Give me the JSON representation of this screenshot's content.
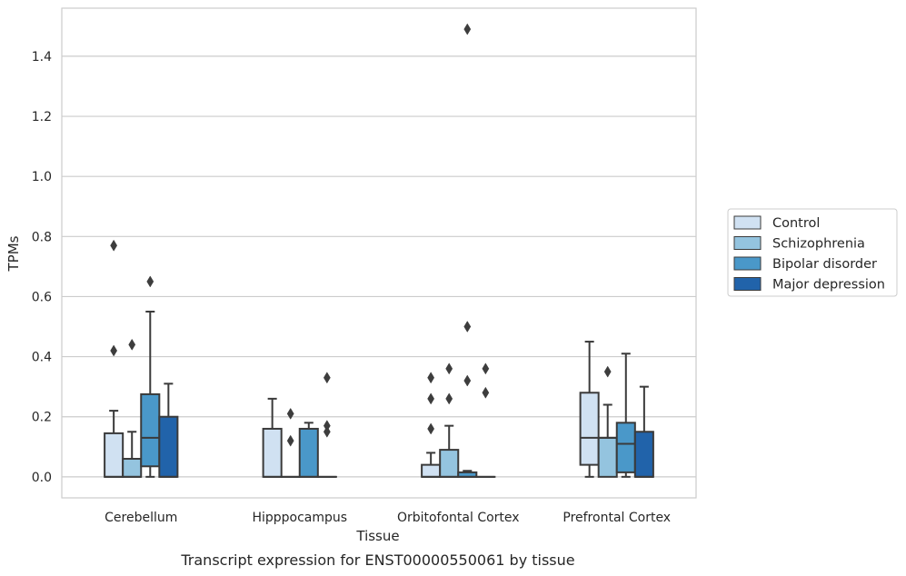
{
  "chart_data": {
    "type": "box",
    "xlabel": "Tissue",
    "ylabel": "TPMs",
    "caption": "Transcript expression for ENST00000550061 by tissue",
    "ylim": [
      -0.07,
      1.56
    ],
    "yticks": [
      0.0,
      0.2,
      0.4,
      0.6,
      0.8,
      1.0,
      1.2,
      1.4
    ],
    "ytick_labels": [
      "0.0",
      "0.2",
      "0.4",
      "0.6",
      "0.8",
      "1.0",
      "1.2",
      "1.4"
    ],
    "grid": "horizontal",
    "legend_position": "right",
    "categories": [
      "Cerebellum",
      "Hipppocampus",
      "Orbitofontal Cortex",
      "Prefrontal Cortex"
    ],
    "series": [
      {
        "name": "Control",
        "color": "#d0e1f2",
        "boxes": [
          {
            "whisker_low": 0.0,
            "q1": 0.0,
            "median": 0.0,
            "q3": 0.145,
            "whisker_high": 0.22,
            "outliers": [
              0.42,
              0.77
            ]
          },
          {
            "whisker_low": 0.0,
            "q1": 0.0,
            "median": 0.0,
            "q3": 0.16,
            "whisker_high": 0.26,
            "outliers": []
          },
          {
            "whisker_low": 0.0,
            "q1": 0.0,
            "median": 0.0,
            "q3": 0.04,
            "whisker_high": 0.08,
            "outliers": [
              0.16,
              0.26,
              0.33
            ]
          },
          {
            "whisker_low": 0.0,
            "q1": 0.04,
            "median": 0.13,
            "q3": 0.28,
            "whisker_high": 0.45,
            "outliers": []
          }
        ]
      },
      {
        "name": "Schizophrenia",
        "color": "#94c4df",
        "boxes": [
          {
            "whisker_low": 0.0,
            "q1": 0.0,
            "median": 0.0,
            "q3": 0.06,
            "whisker_high": 0.15,
            "outliers": [
              0.44
            ]
          },
          {
            "whisker_low": 0.0,
            "q1": 0.0,
            "median": 0.0,
            "q3": 0.0,
            "whisker_high": 0.0,
            "outliers": [
              0.12,
              0.21
            ]
          },
          {
            "whisker_low": 0.0,
            "q1": 0.0,
            "median": 0.0,
            "q3": 0.09,
            "whisker_high": 0.17,
            "outliers": [
              0.26,
              0.36
            ]
          },
          {
            "whisker_low": 0.0,
            "q1": 0.0,
            "median": 0.13,
            "q3": 0.13,
            "whisker_high": 0.24,
            "outliers": [
              0.35
            ]
          }
        ]
      },
      {
        "name": "Bipolar disorder",
        "color": "#4a98c9",
        "boxes": [
          {
            "whisker_low": 0.0,
            "q1": 0.035,
            "median": 0.13,
            "q3": 0.275,
            "whisker_high": 0.55,
            "outliers": [
              0.65
            ]
          },
          {
            "whisker_low": 0.0,
            "q1": 0.0,
            "median": 0.0,
            "q3": 0.16,
            "whisker_high": 0.18,
            "outliers": []
          },
          {
            "whisker_low": 0.0,
            "q1": 0.0,
            "median": 0.0,
            "q3": 0.015,
            "whisker_high": 0.02,
            "outliers": [
              0.32,
              0.5,
              1.49
            ]
          },
          {
            "whisker_low": 0.0,
            "q1": 0.015,
            "median": 0.11,
            "q3": 0.18,
            "whisker_high": 0.41,
            "outliers": []
          }
        ]
      },
      {
        "name": "Major depression",
        "color": "#2163aa",
        "boxes": [
          {
            "whisker_low": 0.0,
            "q1": 0.0,
            "median": 0.0,
            "q3": 0.2,
            "whisker_high": 0.31,
            "outliers": []
          },
          {
            "whisker_low": 0.0,
            "q1": 0.0,
            "median": 0.0,
            "q3": 0.0,
            "whisker_high": 0.0,
            "outliers": [
              0.15,
              0.17,
              0.33
            ]
          },
          {
            "whisker_low": 0.0,
            "q1": 0.0,
            "median": 0.0,
            "q3": 0.0,
            "whisker_high": 0.0,
            "outliers": [
              0.28,
              0.36
            ]
          },
          {
            "whisker_low": 0.0,
            "q1": 0.0,
            "median": 0.0,
            "q3": 0.15,
            "whisker_high": 0.3,
            "outliers": []
          }
        ]
      }
    ]
  }
}
